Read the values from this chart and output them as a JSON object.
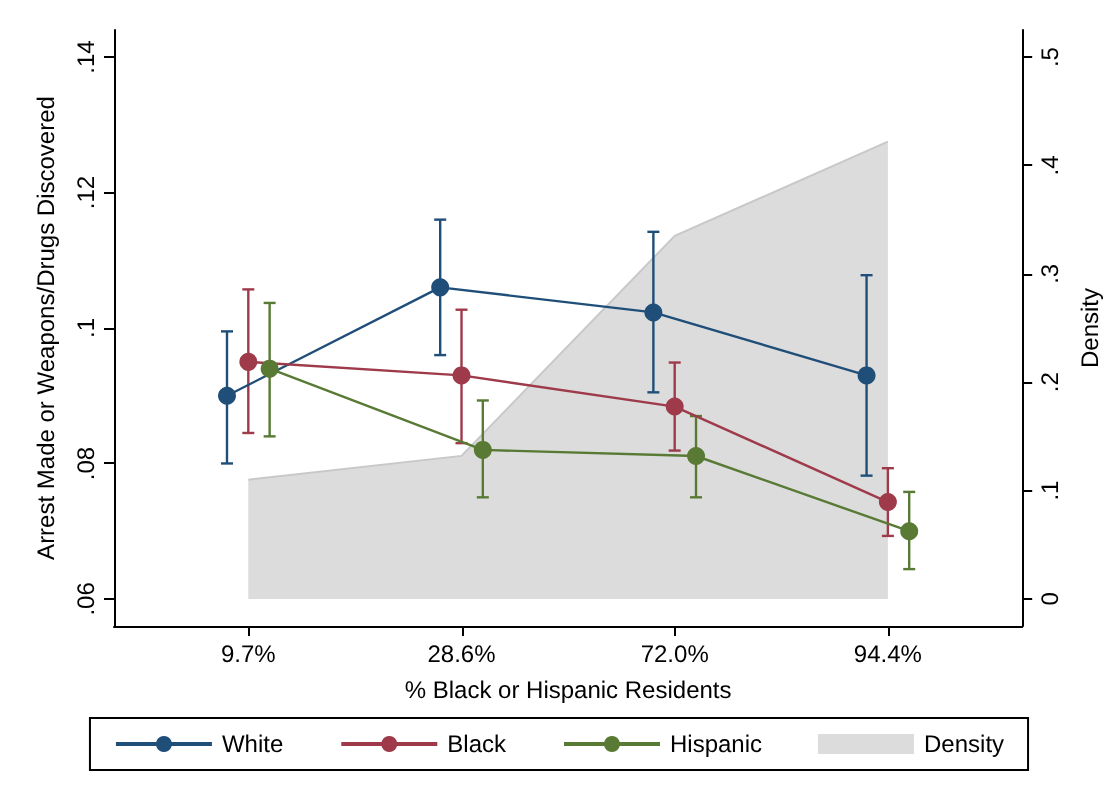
{
  "chart_data": {
    "type": "line",
    "xlabel": "% Black or Hispanic Residents",
    "ylabel": "Arrest Made or Weapons/Drugs Discovered",
    "y2label": "Density",
    "categories": [
      "9.7%",
      "28.6%",
      "72.0%",
      "94.4%"
    ],
    "series": [
      {
        "name": "White",
        "color": "#1f4e79",
        "values": [
          0.09,
          0.106,
          0.1023,
          0.093
        ],
        "errors": [
          [
            0.08,
            0.0995
          ],
          [
            0.096,
            0.116
          ],
          [
            0.0905,
            0.1142
          ],
          [
            0.0782,
            0.1078
          ]
        ]
      },
      {
        "name": "Black",
        "color": "#9e3a4a",
        "values": [
          0.095,
          0.093,
          0.0884,
          0.0743
        ],
        "errors": [
          [
            0.0845,
            0.1057
          ],
          [
            0.083,
            0.1027
          ],
          [
            0.0819,
            0.0949
          ],
          [
            0.0693,
            0.0793
          ]
        ]
      },
      {
        "name": "Hispanic",
        "color": "#587a34",
        "values": [
          0.094,
          0.082,
          0.0811,
          0.07
        ],
        "errors": [
          [
            0.084,
            0.1037
          ],
          [
            0.075,
            0.0893
          ],
          [
            0.075,
            0.087
          ],
          [
            0.0644,
            0.0758
          ]
        ]
      },
      {
        "name": "Density",
        "type": "area",
        "axis": "y2",
        "color": "#dcdcdc",
        "marker": "none",
        "values": [
          0.11,
          0.132,
          0.335,
          0.422
        ]
      }
    ],
    "ylim": [
      0.056,
      0.144
    ],
    "yticks": [
      {
        "value": 0.06,
        "label": ".06"
      },
      {
        "value": 0.08,
        "label": ".08"
      },
      {
        "value": 0.1,
        "label": ".1"
      },
      {
        "value": 0.12,
        "label": ".12"
      },
      {
        "value": 0.14,
        "label": ".14"
      }
    ],
    "y2lim": [
      -0.025,
      0.525
    ],
    "y2ticks": [
      0,
      {
        "value": 0.1,
        "label": ".1"
      },
      {
        "value": 0.2,
        "label": ".2"
      },
      {
        "value": 0.3,
        "label": ".3"
      },
      {
        "value": 0.4,
        "label": ".4"
      },
      {
        "value": 0.5,
        "label": ".5"
      }
    ],
    "marker": "circle",
    "grid": false,
    "legend": "bottom"
  }
}
